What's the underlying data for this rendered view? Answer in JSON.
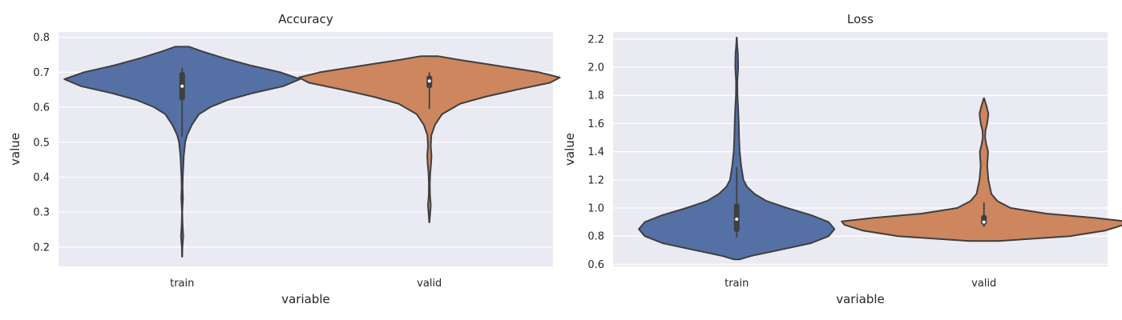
{
  "chart_data": [
    {
      "type": "violin",
      "title": "Accuracy",
      "xlabel": "variable",
      "ylabel": "value",
      "categories": [
        "train",
        "valid"
      ],
      "ylim": [
        0.145,
        0.815
      ],
      "yticks": [
        "0.2",
        "0.3",
        "0.4",
        "0.5",
        "0.6",
        "0.7",
        "0.8"
      ],
      "grid": true,
      "violins": [
        {
          "category": "train",
          "color": "#5470a5",
          "profile": [
            [
              0.173,
              0.001
            ],
            [
              0.2,
              0.002
            ],
            [
              0.23,
              0.008
            ],
            [
              0.26,
              0.004
            ],
            [
              0.3,
              0.001
            ],
            [
              0.34,
              0.006
            ],
            [
              0.37,
              0.003
            ],
            [
              0.4,
              0.005
            ],
            [
              0.43,
              0.008
            ],
            [
              0.46,
              0.012
            ],
            [
              0.5,
              0.022
            ],
            [
              0.52,
              0.035
            ],
            [
              0.55,
              0.07
            ],
            [
              0.58,
              0.12
            ],
            [
              0.6,
              0.2
            ],
            [
              0.62,
              0.32
            ],
            [
              0.64,
              0.5
            ],
            [
              0.66,
              0.72
            ],
            [
              0.68,
              0.84
            ],
            [
              0.7,
              0.7
            ],
            [
              0.72,
              0.48
            ],
            [
              0.74,
              0.3
            ],
            [
              0.76,
              0.14
            ],
            [
              0.773,
              0.05
            ]
          ],
          "q1": 0.62,
          "median": 0.66,
          "q3": 0.7,
          "whisker_low": 0.515,
          "whisker_high": 0.713
        },
        {
          "category": "valid",
          "color": "#cd865e",
          "profile": [
            [
              0.271,
              0.001
            ],
            [
              0.29,
              0.004
            ],
            [
              0.32,
              0.01
            ],
            [
              0.35,
              0.004
            ],
            [
              0.38,
              0.003
            ],
            [
              0.41,
              0.006
            ],
            [
              0.44,
              0.012
            ],
            [
              0.46,
              0.015
            ],
            [
              0.49,
              0.01
            ],
            [
              0.52,
              0.014
            ],
            [
              0.55,
              0.04
            ],
            [
              0.58,
              0.09
            ],
            [
              0.61,
              0.22
            ],
            [
              0.63,
              0.4
            ],
            [
              0.65,
              0.62
            ],
            [
              0.67,
              0.86
            ],
            [
              0.685,
              0.93
            ],
            [
              0.7,
              0.78
            ],
            [
              0.72,
              0.46
            ],
            [
              0.735,
              0.22
            ],
            [
              0.746,
              0.06
            ]
          ],
          "q1": 0.655,
          "median": 0.675,
          "q3": 0.69,
          "whisker_low": 0.595,
          "whisker_high": 0.7
        }
      ]
    },
    {
      "type": "violin",
      "title": "Loss",
      "xlabel": "variable",
      "ylabel": "value",
      "categories": [
        "train",
        "valid"
      ],
      "ylim": [
        0.585,
        2.25
      ],
      "yticks": [
        "0.6",
        "0.8",
        "1.0",
        "1.2",
        "1.4",
        "1.6",
        "1.8",
        "2.0",
        "2.2"
      ],
      "grid": true,
      "violins": [
        {
          "category": "train",
          "color": "#5470a5",
          "profile": [
            [
              0.635,
              0.02
            ],
            [
              0.66,
              0.1
            ],
            [
              0.7,
              0.28
            ],
            [
              0.75,
              0.5
            ],
            [
              0.8,
              0.62
            ],
            [
              0.85,
              0.66
            ],
            [
              0.9,
              0.62
            ],
            [
              0.95,
              0.5
            ],
            [
              1.0,
              0.34
            ],
            [
              1.05,
              0.2
            ],
            [
              1.1,
              0.12
            ],
            [
              1.15,
              0.07
            ],
            [
              1.2,
              0.045
            ],
            [
              1.3,
              0.03
            ],
            [
              1.4,
              0.02
            ],
            [
              1.5,
              0.016
            ],
            [
              1.6,
              0.014
            ],
            [
              1.7,
              0.01
            ],
            [
              1.8,
              0.005
            ],
            [
              1.9,
              0.004
            ],
            [
              2.0,
              0.01
            ],
            [
              2.1,
              0.008
            ],
            [
              2.16,
              0.003
            ],
            [
              2.21,
              0.001
            ]
          ],
          "q1": 0.83,
          "median": 0.92,
          "q3": 1.03,
          "whisker_low": 0.79,
          "whisker_high": 1.29
        },
        {
          "category": "valid",
          "color": "#cd865e",
          "profile": [
            [
              0.765,
              0.1
            ],
            [
              0.8,
              0.58
            ],
            [
              0.84,
              0.82
            ],
            [
              0.88,
              0.94
            ],
            [
              0.905,
              0.96
            ],
            [
              0.93,
              0.74
            ],
            [
              0.96,
              0.42
            ],
            [
              1.0,
              0.18
            ],
            [
              1.05,
              0.09
            ],
            [
              1.1,
              0.05
            ],
            [
              1.2,
              0.03
            ],
            [
              1.3,
              0.022
            ],
            [
              1.4,
              0.028
            ],
            [
              1.45,
              0.016
            ],
            [
              1.5,
              0.008
            ],
            [
              1.55,
              0.01
            ],
            [
              1.6,
              0.022
            ],
            [
              1.67,
              0.03
            ],
            [
              1.72,
              0.018
            ],
            [
              1.78,
              0.001
            ]
          ],
          "q1": 0.88,
          "median": 0.9,
          "q3": 0.95,
          "whisker_low": 0.865,
          "whisker_high": 1.04
        }
      ]
    }
  ]
}
